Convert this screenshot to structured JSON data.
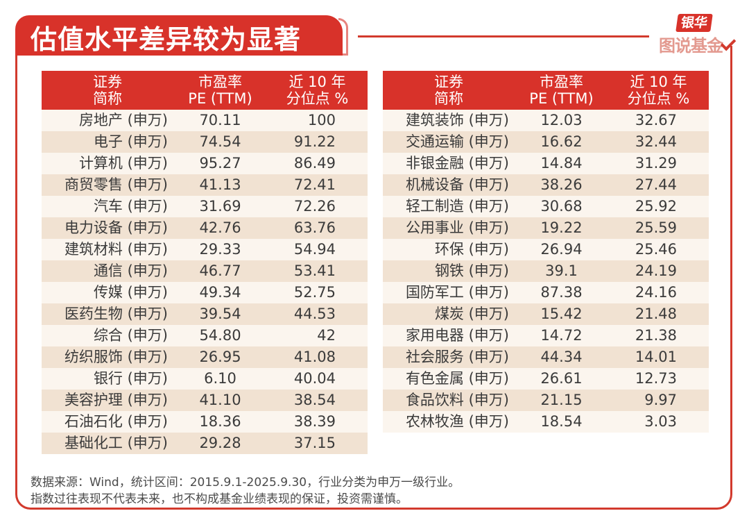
{
  "title": "估值水平差异较为显著",
  "logo": {
    "top": "银华",
    "bottom": "图说基金",
    "check_icon": "checkmark-icon"
  },
  "colors": {
    "accent": "#d8322a",
    "row_light": "#fbf5ee",
    "row_dark": "#f1e2d2"
  },
  "table_headers": {
    "name_line1": "证券",
    "name_line2": "简称",
    "pe_line1": "市盈率",
    "pe_line2": "PE (TTM)",
    "pct_line1": "近 10 年",
    "pct_line2": "分位点 %"
  },
  "left_rows": [
    {
      "name": "房地产 (申万)",
      "pe": "70.11",
      "pct": "100"
    },
    {
      "name": "电子 (申万)",
      "pe": "74.54",
      "pct": "91.22"
    },
    {
      "name": "计算机 (申万)",
      "pe": "95.27",
      "pct": "86.49"
    },
    {
      "name": "商贸零售 (申万)",
      "pe": "41.13",
      "pct": "72.41"
    },
    {
      "name": "汽车 (申万)",
      "pe": "31.69",
      "pct": "72.26"
    },
    {
      "name": "电力设备 (申万)",
      "pe": "42.76",
      "pct": "63.76"
    },
    {
      "name": "建筑材料 (申万)",
      "pe": "29.33",
      "pct": "54.94"
    },
    {
      "name": "通信 (申万)",
      "pe": "46.77",
      "pct": "53.41"
    },
    {
      "name": "传媒 (申万)",
      "pe": "49.34",
      "pct": "52.75"
    },
    {
      "name": "医药生物 (申万)",
      "pe": "39.54",
      "pct": "44.53"
    },
    {
      "name": "综合 (申万)",
      "pe": "54.80",
      "pct": "42"
    },
    {
      "name": "纺织服饰 (申万)",
      "pe": "26.95",
      "pct": "41.08"
    },
    {
      "name": "银行 (申万)",
      "pe": "6.10",
      "pct": "40.04"
    },
    {
      "name": "美容护理 (申万)",
      "pe": "41.10",
      "pct": "38.54"
    },
    {
      "name": "石油石化 (申万)",
      "pe": "18.36",
      "pct": "38.39"
    },
    {
      "name": "基础化工 (申万)",
      "pe": "29.28",
      "pct": "37.15"
    }
  ],
  "right_rows": [
    {
      "name": "建筑装饰 (申万)",
      "pe": "12.03",
      "pct": "32.67"
    },
    {
      "name": "交通运输 (申万)",
      "pe": "16.62",
      "pct": "32.44"
    },
    {
      "name": "非银金融 (申万)",
      "pe": "14.84",
      "pct": "31.29"
    },
    {
      "name": "机械设备 (申万)",
      "pe": "38.26",
      "pct": "27.44"
    },
    {
      "name": "轻工制造 (申万)",
      "pe": "30.68",
      "pct": "25.92"
    },
    {
      "name": "公用事业 (申万)",
      "pe": "19.22",
      "pct": "25.59"
    },
    {
      "name": "环保 (申万)",
      "pe": "26.94",
      "pct": "25.46"
    },
    {
      "name": "钢铁 (申万)",
      "pe": "39.1",
      "pct": "24.19"
    },
    {
      "name": "国防军工 (申万)",
      "pe": "87.38",
      "pct": "24.16"
    },
    {
      "name": "煤炭 (申万)",
      "pe": "15.42",
      "pct": "21.48"
    },
    {
      "name": "家用电器 (申万)",
      "pe": "14.72",
      "pct": "21.38"
    },
    {
      "name": "社会服务 (申万)",
      "pe": "44.34",
      "pct": "14.01"
    },
    {
      "name": "有色金属 (申万)",
      "pe": "26.61",
      "pct": "12.73"
    },
    {
      "name": "食品饮料 (申万)",
      "pe": "21.15",
      "pct": "9.97"
    },
    {
      "name": "农林牧渔 (申万)",
      "pe": "18.54",
      "pct": "3.03"
    }
  ],
  "notes": {
    "line1": "数据来源：Wind，统计区间：2015.9.1-2025.9.30，行业分类为申万一级行业。",
    "line2": "指数过往表现不代表未来，也不构成基金业绩表现的保证，投资需谨慎。"
  }
}
